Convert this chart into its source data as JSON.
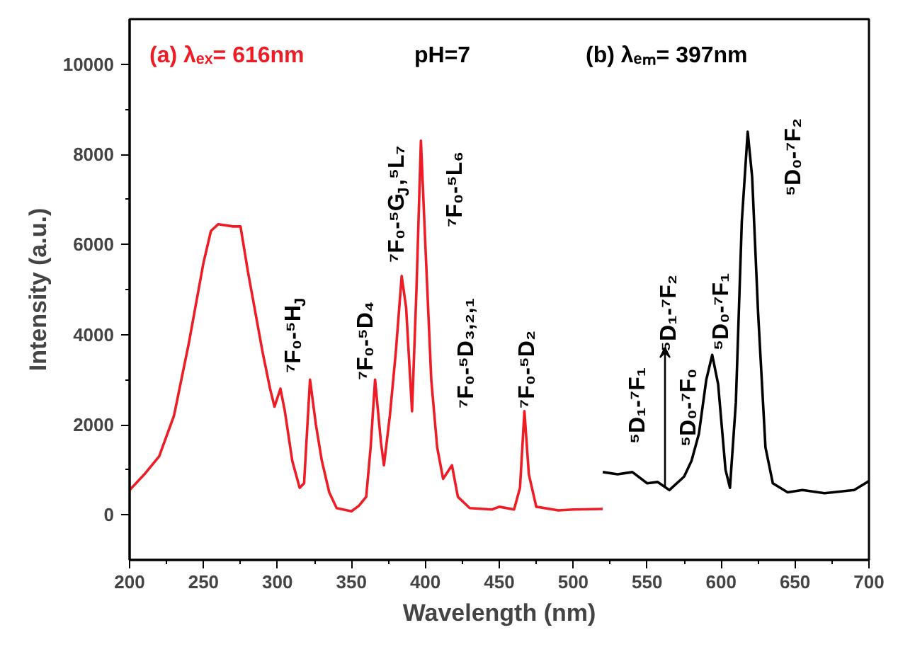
{
  "chart_data": {
    "type": "line",
    "xlabel": "Wavelength (nm)",
    "ylabel": "Intensity (a.u.)",
    "xlim": [
      200,
      700
    ],
    "ylim": [
      -1000,
      11000
    ],
    "xticks": [
      200,
      250,
      300,
      350,
      400,
      450,
      500,
      550,
      600,
      650,
      700
    ],
    "yticks": [
      0,
      2000,
      4000,
      6000,
      8000,
      10000
    ],
    "grid": false,
    "marker": "none",
    "line_style": "solid",
    "series": [
      {
        "color": "#ee1c25",
        "x": [
          200,
          210,
          220,
          230,
          240,
          250,
          255,
          260,
          270,
          275,
          280,
          290,
          295,
          298,
          302,
          305,
          310,
          315,
          318,
          322,
          326,
          330,
          335,
          340,
          350,
          355,
          360,
          363,
          366,
          370,
          372,
          376,
          380,
          384,
          387,
          391,
          394,
          397,
          400,
          404,
          408,
          412,
          418,
          422,
          430,
          445,
          450,
          460,
          464,
          467,
          470,
          475,
          490,
          500,
          520
        ],
        "values": [
          550,
          900,
          1300,
          2200,
          3800,
          5600,
          6300,
          6450,
          6400,
          6400,
          5400,
          3600,
          2800,
          2400,
          2800,
          2300,
          1200,
          600,
          700,
          3000,
          2000,
          1200,
          500,
          150,
          80,
          200,
          400,
          1500,
          3000,
          1600,
          1100,
          2200,
          3600,
          5300,
          4600,
          2300,
          5000,
          8300,
          6000,
          3000,
          1500,
          800,
          1100,
          400,
          150,
          120,
          180,
          120,
          600,
          2300,
          900,
          180,
          100,
          120,
          130
        ]
      },
      {
        "color": "#000000",
        "x": [
          520,
          530,
          540,
          550,
          557,
          565,
          575,
          580,
          585,
          590,
          594,
          598,
          603,
          606,
          610,
          614,
          618,
          621,
          625,
          630,
          635,
          645,
          655,
          670,
          690,
          700
        ],
        "values": [
          950,
          900,
          950,
          700,
          730,
          550,
          850,
          1200,
          1800,
          3000,
          3550,
          2900,
          1000,
          600,
          2500,
          6500,
          8500,
          7500,
          4500,
          1500,
          700,
          500,
          550,
          480,
          550,
          750
        ]
      }
    ],
    "annotations": [
      "(a) λₑₓ= 616nm",
      "pH=7",
      "(b) λₑₘ= 397nm",
      "⁷F₀-⁵H$_{J}$",
      "⁷F₀-⁵D₄",
      "⁷F₀-⁵G$_{J}$,⁵L₇",
      "⁷F₀-⁵L₆",
      "⁷F₀-⁵D₃,₂,₁",
      "⁷F₀-⁵D₂",
      "⁵D₁-⁷F₁",
      "⁵D₁-⁷F₂",
      "⁵D₀-⁷F₀",
      "⁵D₀-⁷F₁",
      "⁵D₀-⁷F₂"
    ]
  }
}
